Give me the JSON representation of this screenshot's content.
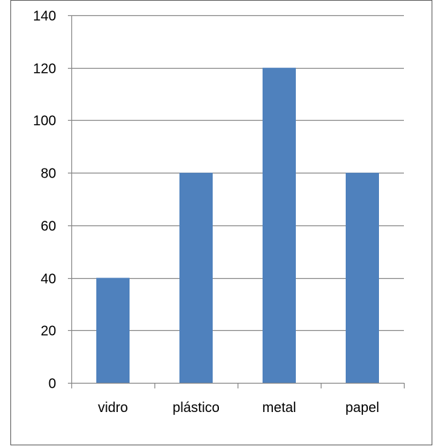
{
  "chart_data": {
    "type": "bar",
    "title": "",
    "xlabel": "",
    "ylabel": "",
    "categories": [
      "vidro",
      "plástico",
      "metal",
      "papel"
    ],
    "values": [
      40,
      80,
      120,
      80
    ],
    "ylim": [
      0,
      140
    ],
    "yticks": [
      0,
      20,
      40,
      60,
      80,
      100,
      120,
      140
    ],
    "ytick_labels": [
      "0",
      "20",
      "40",
      "60",
      "80",
      "100",
      "120",
      "140"
    ],
    "grid": true,
    "legend": "none",
    "colors": {
      "bar": "#4F81BD",
      "grid": "#868686",
      "axis": "#868686",
      "frame": "#595959",
      "text": "#000000"
    }
  }
}
